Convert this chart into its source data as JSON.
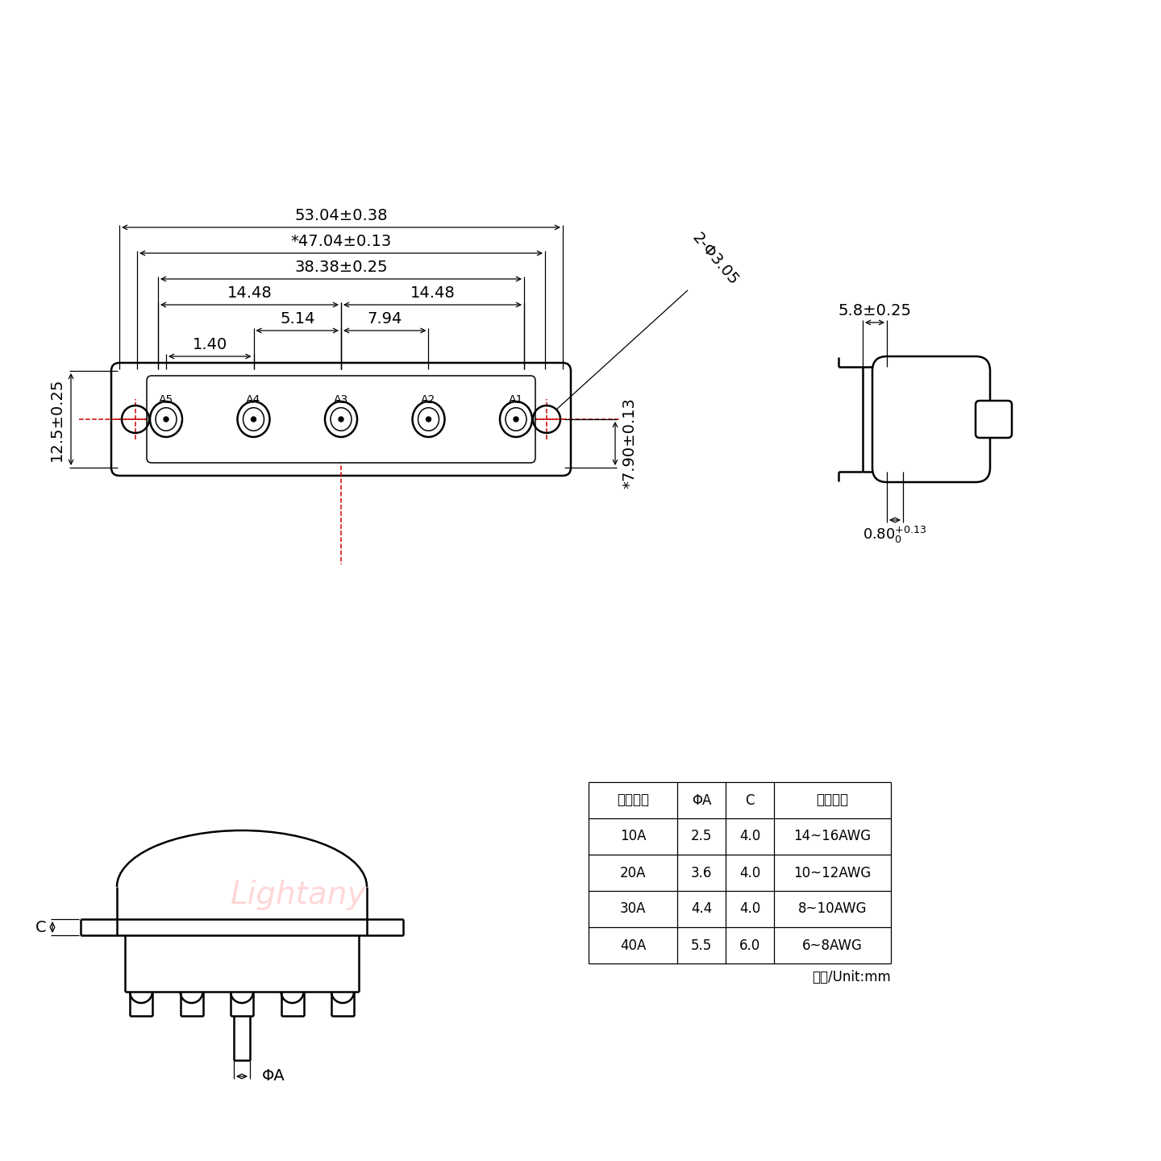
{
  "bg_color": "#ffffff",
  "line_color": "#000000",
  "red_color": "#cc0000",
  "pink_color": "#ffb6b6",
  "watermark": "Lightany",
  "table_headers": [
    "额定电流",
    "ΦA",
    "C",
    "线材规格"
  ],
  "table_rows": [
    [
      "10A",
      "2.5",
      "4.0",
      "14~16AWG"
    ],
    [
      "20A",
      "3.6",
      "4.0",
      "10~12AWG"
    ],
    [
      "30A",
      "4.4",
      "4.0",
      "8~10AWG"
    ],
    [
      "40A",
      "5.5",
      "6.0",
      "6~8AWG"
    ]
  ],
  "unit_text": "单位/Unit:mm",
  "dim_53": "53.04±0.38",
  "dim_47": "*47.04±0.13",
  "dim_38": "38.38±0.25",
  "dim_1448a": "14.48",
  "dim_1448b": "14.48",
  "dim_514": "5.14",
  "dim_794": "7.94",
  "dim_140": "1.40",
  "dim_125": "12.5±0.25",
  "dim_790": "*7.90±0.13",
  "dim_phi305": "2-Φ3.05",
  "dim_58": "5.8±0.25",
  "dim_080": "0.80",
  "pin_labels": [
    "A5",
    "A4",
    "A3",
    "A2",
    "A1"
  ]
}
